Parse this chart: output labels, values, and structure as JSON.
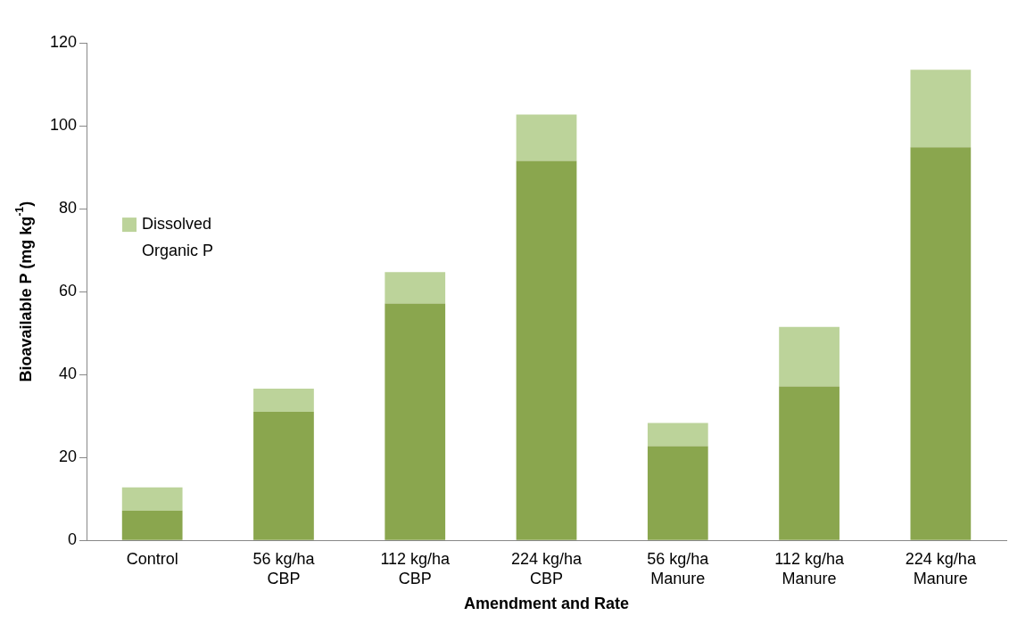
{
  "chart_data": {
    "type": "bar",
    "stacked": true,
    "xlabel": "Amendment and Rate",
    "ylabel": "Bioavailable P (mg kg$^{-1}$)",
    "categories": [
      "Control",
      "56 kg/ha CBP",
      "112 kg/ha CBP",
      "224 kg/ha CBP",
      "56 kg/ha Manure",
      "112 kg/ha Manure",
      "224 kg/ha Manure"
    ],
    "series": [
      {
        "color": "#8aa64e",
        "values": [
          7.2,
          31.0,
          57.1,
          91.5,
          22.7,
          37.1,
          94.8
        ]
      },
      {
        "name": "Dissolved Organic P",
        "color": "#bcd39a",
        "values": [
          5.6,
          5.6,
          7.6,
          11.2,
          5.6,
          14.4,
          18.7
        ]
      }
    ],
    "ylim": [
      0,
      120
    ],
    "yticks": [
      0,
      20,
      40,
      60,
      80,
      100,
      120
    ],
    "grid": false,
    "legend": "left"
  }
}
